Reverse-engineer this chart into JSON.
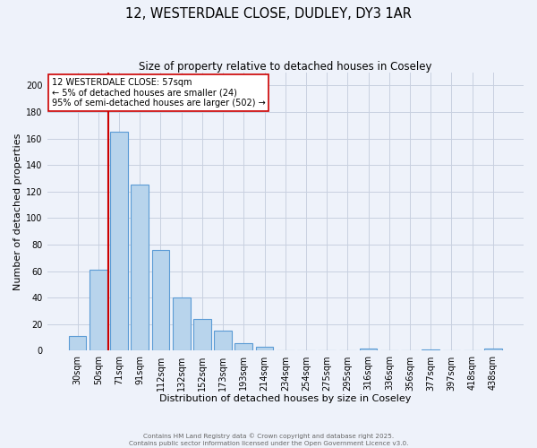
{
  "title": "12, WESTERDALE CLOSE, DUDLEY, DY3 1AR",
  "subtitle": "Size of property relative to detached houses in Coseley",
  "bar_labels": [
    "30sqm",
    "50sqm",
    "71sqm",
    "91sqm",
    "112sqm",
    "132sqm",
    "152sqm",
    "173sqm",
    "193sqm",
    "214sqm",
    "234sqm",
    "254sqm",
    "275sqm",
    "295sqm",
    "316sqm",
    "336sqm",
    "356sqm",
    "377sqm",
    "397sqm",
    "418sqm",
    "438sqm"
  ],
  "bar_values": [
    11,
    61,
    165,
    125,
    76,
    40,
    24,
    15,
    6,
    3,
    0,
    0,
    0,
    0,
    2,
    0,
    0,
    1,
    0,
    0,
    2
  ],
  "bar_color": "#b8d4ec",
  "bar_edge_color": "#5b9bd5",
  "background_color": "#eef2fa",
  "grid_color": "#c8d0e0",
  "vline_color": "#cc0000",
  "vline_x": 1.5,
  "xlabel": "Distribution of detached houses by size in Coseley",
  "ylabel": "Number of detached properties",
  "ylim": [
    0,
    210
  ],
  "yticks": [
    0,
    20,
    40,
    60,
    80,
    100,
    120,
    140,
    160,
    180,
    200
  ],
  "annotation_title": "12 WESTERDALE CLOSE: 57sqm",
  "annotation_line1": "← 5% of detached houses are smaller (24)",
  "annotation_line2": "95% of semi-detached houses are larger (502) →",
  "annotation_box_color": "#ffffff",
  "annotation_box_edge": "#cc0000",
  "footer1": "Contains HM Land Registry data © Crown copyright and database right 2025.",
  "footer2": "Contains public sector information licensed under the Open Government Licence v3.0."
}
